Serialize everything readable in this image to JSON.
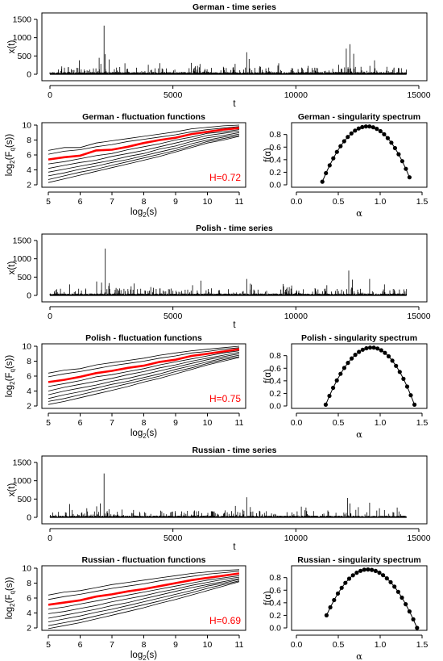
{
  "chart_data": [
    {
      "type": "line",
      "title": "German - time series",
      "xlabel": "t",
      "ylabel": "x(t)",
      "xlim": [
        0,
        15000
      ],
      "ylim": [
        0,
        1500
      ],
      "xticks": [
        0,
        5000,
        10000,
        15000
      ],
      "yticks": [
        0,
        500,
        1000,
        1500
      ],
      "n_points": 14500,
      "baseline": 40,
      "spikes": [
        [
          2000,
          450
        ],
        [
          2200,
          1330
        ],
        [
          2250,
          550
        ],
        [
          1200,
          380
        ],
        [
          3050,
          300
        ],
        [
          4000,
          260
        ],
        [
          8000,
          600
        ],
        [
          8100,
          420
        ],
        [
          9300,
          300
        ],
        [
          10500,
          230
        ],
        [
          12050,
          700
        ],
        [
          12200,
          820
        ],
        [
          12350,
          560
        ],
        [
          13200,
          380
        ]
      ]
    },
    {
      "type": "line",
      "title": "German - fluctuation functions",
      "xlabel": "log2(s)",
      "ylabel": "log2(Fq(s))",
      "xlim": [
        5,
        11
      ],
      "ylim": [
        2,
        10
      ],
      "xticks": [
        5,
        6,
        7,
        8,
        9,
        10,
        11
      ],
      "yticks": [
        2,
        4,
        6,
        8,
        10
      ],
      "annotation": "H=0.72",
      "x": [
        5,
        5.5,
        6,
        6.5,
        7,
        7.5,
        8,
        8.5,
        9,
        9.5,
        10,
        10.5,
        11
      ],
      "series": [
        {
          "values": [
            6.6,
            7.0,
            7.0,
            7.6,
            7.9,
            8.2,
            8.5,
            8.8,
            9.1,
            9.5,
            9.7,
            9.9,
            10.0
          ]
        },
        {
          "values": [
            6.1,
            6.5,
            6.7,
            7.1,
            7.4,
            7.8,
            8.1,
            8.4,
            8.7,
            9.1,
            9.4,
            9.6,
            9.8
          ]
        },
        {
          "values": [
            5.4,
            5.7,
            5.9,
            6.6,
            6.7,
            7.1,
            7.6,
            8.0,
            8.3,
            8.8,
            9.1,
            9.4,
            9.6
          ],
          "highlight": true
        },
        {
          "values": [
            4.8,
            5.1,
            5.5,
            5.9,
            6.2,
            6.7,
            7.1,
            7.5,
            8.0,
            8.4,
            8.9,
            9.1,
            9.4
          ]
        },
        {
          "values": [
            4.2,
            4.6,
            5.0,
            5.3,
            5.8,
            6.2,
            6.6,
            7.1,
            7.6,
            8.1,
            8.6,
            8.9,
            9.2
          ]
        },
        {
          "values": [
            3.7,
            4.1,
            4.5,
            4.9,
            5.3,
            5.8,
            6.2,
            6.8,
            7.2,
            7.8,
            8.3,
            8.6,
            9.0
          ]
        },
        {
          "values": [
            3.2,
            3.6,
            4.1,
            4.5,
            5.0,
            5.4,
            5.9,
            6.4,
            6.9,
            7.5,
            8.0,
            8.4,
            8.8
          ]
        },
        {
          "values": [
            2.7,
            3.2,
            3.7,
            4.1,
            4.6,
            5.1,
            5.6,
            6.1,
            6.6,
            7.2,
            7.8,
            8.2,
            8.6
          ]
        },
        {
          "values": [
            2.3,
            2.8,
            3.3,
            3.8,
            4.3,
            4.8,
            5.3,
            5.8,
            6.4,
            7.0,
            7.6,
            8.0,
            8.5
          ]
        }
      ]
    },
    {
      "type": "scatter",
      "title": "German - singularity spectrum",
      "xlabel": "α",
      "ylabel": "f(α)",
      "xlim": [
        0.0,
        1.5
      ],
      "ylim": [
        0.0,
        0.95
      ],
      "xticks": [
        0.0,
        0.5,
        1.0,
        1.5
      ],
      "yticks": [
        0.0,
        0.2,
        0.4,
        0.6,
        0.8
      ],
      "alpha_min": 0.31,
      "alpha_peak": 0.85,
      "alpha_max": 1.35,
      "f_peak": 0.93,
      "f_left": 0.05,
      "f_right": 0.12
    },
    {
      "type": "line",
      "title": "Polish - time series",
      "xlabel": "t",
      "ylabel": "x(t)",
      "xlim": [
        0,
        15000
      ],
      "ylim": [
        0,
        1500
      ],
      "xticks": [
        0,
        5000,
        10000,
        15000
      ],
      "yticks": [
        0,
        500,
        1000,
        1500
      ],
      "n_points": 14500,
      "baseline": 35,
      "spikes": [
        [
          800,
          300
        ],
        [
          1900,
          380
        ],
        [
          2100,
          350
        ],
        [
          2250,
          1280
        ],
        [
          3300,
          250
        ],
        [
          4100,
          230
        ],
        [
          8000,
          450
        ],
        [
          8150,
          320
        ],
        [
          9500,
          250
        ],
        [
          12150,
          680
        ],
        [
          12300,
          430
        ],
        [
          13000,
          450
        ],
        [
          13600,
          300
        ]
      ]
    },
    {
      "type": "line",
      "title": "Polish - fluctuation functions",
      "xlabel": "log2(s)",
      "ylabel": "log2(Fq(s))",
      "xlim": [
        5,
        11
      ],
      "ylim": [
        2,
        10
      ],
      "xticks": [
        5,
        6,
        7,
        8,
        9,
        10,
        11
      ],
      "yticks": [
        2,
        4,
        6,
        8,
        10
      ],
      "annotation": "H=0.75",
      "x": [
        5,
        5.5,
        6,
        6.5,
        7,
        7.5,
        8,
        8.5,
        9,
        9.5,
        10,
        10.5,
        11
      ],
      "series": [
        {
          "values": [
            6.4,
            6.8,
            7.0,
            7.5,
            7.8,
            8.1,
            8.4,
            8.8,
            9.1,
            9.4,
            9.6,
            9.8,
            10.0
          ]
        },
        {
          "values": [
            5.9,
            6.3,
            6.6,
            7.0,
            7.4,
            7.7,
            8.0,
            8.4,
            8.7,
            9.1,
            9.3,
            9.6,
            9.8
          ]
        },
        {
          "values": [
            5.2,
            5.5,
            5.9,
            6.4,
            6.7,
            7.1,
            7.4,
            7.9,
            8.2,
            8.7,
            9.0,
            9.3,
            9.6
          ],
          "highlight": true
        },
        {
          "values": [
            4.6,
            5.0,
            5.4,
            5.9,
            6.2,
            6.6,
            7.0,
            7.5,
            7.9,
            8.3,
            8.7,
            9.1,
            9.4
          ]
        },
        {
          "values": [
            4.0,
            4.5,
            4.9,
            5.3,
            5.7,
            6.2,
            6.6,
            7.1,
            7.5,
            8.0,
            8.4,
            8.8,
            9.2
          ]
        },
        {
          "values": [
            3.5,
            4.0,
            4.4,
            4.8,
            5.3,
            5.7,
            6.2,
            6.7,
            7.2,
            7.7,
            8.2,
            8.6,
            9.0
          ]
        },
        {
          "values": [
            3.0,
            3.5,
            3.9,
            4.4,
            4.9,
            5.3,
            5.8,
            6.3,
            6.9,
            7.4,
            7.9,
            8.4,
            8.8
          ]
        },
        {
          "values": [
            2.6,
            3.0,
            3.5,
            4.0,
            4.5,
            5.0,
            5.5,
            6.0,
            6.6,
            7.1,
            7.7,
            8.2,
            8.6
          ]
        },
        {
          "values": [
            2.2,
            2.6,
            3.1,
            3.6,
            4.1,
            4.6,
            5.2,
            5.7,
            6.3,
            6.9,
            7.5,
            8.0,
            8.5
          ]
        }
      ]
    },
    {
      "type": "scatter",
      "title": "Polish - singularity spectrum",
      "xlabel": "α",
      "ylabel": "f(α)",
      "xlim": [
        0.0,
        1.5
      ],
      "ylim": [
        0.0,
        0.95
      ],
      "xticks": [
        0.0,
        0.5,
        1.0,
        1.5
      ],
      "yticks": [
        0.0,
        0.2,
        0.4,
        0.6,
        0.8
      ],
      "alpha_min": 0.35,
      "alpha_peak": 0.9,
      "alpha_max": 1.41,
      "f_peak": 0.93,
      "f_left": 0.02,
      "f_right": 0.02
    },
    {
      "type": "line",
      "title": "Russian - time series",
      "xlabel": "t",
      "ylabel": "x(t)",
      "xlim": [
        0,
        15000
      ],
      "ylim": [
        0,
        1500
      ],
      "xticks": [
        0,
        5000,
        10000,
        15000
      ],
      "yticks": [
        0,
        500,
        1000,
        1500
      ],
      "n_points": 14500,
      "baseline": 30,
      "spikes": [
        [
          900,
          200
        ],
        [
          1500,
          250
        ],
        [
          1900,
          300
        ],
        [
          2050,
          380
        ],
        [
          2200,
          1200
        ],
        [
          2400,
          220
        ],
        [
          3400,
          200
        ],
        [
          4500,
          180
        ],
        [
          8000,
          550
        ],
        [
          8150,
          280
        ],
        [
          12100,
          530
        ],
        [
          12200,
          380
        ],
        [
          13000,
          400
        ],
        [
          13400,
          250
        ]
      ]
    },
    {
      "type": "line",
      "title": "Russian - fluctuation functions",
      "xlabel": "log2(s)",
      "ylabel": "log2(Fq(s))",
      "xlim": [
        5,
        11
      ],
      "ylim": [
        2,
        10
      ],
      "xticks": [
        5,
        6,
        7,
        8,
        9,
        10,
        11
      ],
      "yticks": [
        2,
        4,
        6,
        8,
        10
      ],
      "annotation": "H=0.69",
      "x": [
        5,
        5.5,
        6,
        6.5,
        7,
        7.5,
        8,
        8.5,
        9,
        9.5,
        10,
        10.5,
        11
      ],
      "series": [
        {
          "values": [
            6.4,
            6.8,
            7.0,
            7.4,
            7.8,
            8.1,
            8.4,
            8.7,
            9.0,
            9.3,
            9.5,
            9.7,
            9.8
          ]
        },
        {
          "values": [
            5.8,
            6.2,
            6.5,
            6.9,
            7.3,
            7.6,
            7.9,
            8.3,
            8.6,
            8.9,
            9.2,
            9.4,
            9.6
          ]
        },
        {
          "values": [
            5.1,
            5.4,
            5.7,
            6.2,
            6.5,
            6.9,
            7.2,
            7.6,
            8.0,
            8.4,
            8.7,
            9.0,
            9.3
          ],
          "highlight": true
        },
        {
          "values": [
            4.5,
            4.8,
            5.2,
            5.6,
            6.0,
            6.4,
            6.8,
            7.2,
            7.6,
            8.0,
            8.4,
            8.7,
            9.0
          ]
        },
        {
          "values": [
            3.9,
            4.2,
            4.6,
            5.0,
            5.5,
            5.9,
            6.3,
            6.8,
            7.2,
            7.7,
            8.1,
            8.5,
            8.8
          ]
        },
        {
          "values": [
            3.3,
            3.7,
            4.1,
            4.5,
            5.0,
            5.4,
            5.9,
            6.4,
            6.9,
            7.4,
            7.8,
            8.2,
            8.6
          ]
        },
        {
          "values": [
            2.8,
            3.2,
            3.6,
            4.1,
            4.5,
            5.0,
            5.5,
            6.0,
            6.5,
            7.0,
            7.6,
            8.0,
            8.5
          ]
        },
        {
          "values": [
            2.3,
            2.7,
            3.1,
            3.6,
            4.1,
            4.6,
            5.1,
            5.6,
            6.2,
            6.7,
            7.3,
            7.8,
            8.3
          ]
        },
        {
          "values": [
            1.9,
            2.3,
            2.7,
            3.2,
            3.7,
            4.2,
            4.7,
            5.3,
            5.8,
            6.4,
            7.0,
            7.6,
            8.2
          ]
        }
      ]
    },
    {
      "type": "scatter",
      "title": "Russian - singularity spectrum",
      "xlabel": "α",
      "ylabel": "f(α)",
      "xlim": [
        0.0,
        1.5
      ],
      "ylim": [
        0.0,
        0.95
      ],
      "xticks": [
        0.0,
        0.5,
        1.0,
        1.5
      ],
      "yticks": [
        0.0,
        0.2,
        0.4,
        0.6,
        0.8
      ],
      "alpha_min": 0.36,
      "alpha_peak": 0.85,
      "alpha_max": 1.44,
      "f_peak": 0.93,
      "f_left": 0.2,
      "f_right": 0.0
    }
  ],
  "colors": {
    "line": "#000000",
    "highlight": "#ff0000",
    "background": "#ffffff"
  }
}
